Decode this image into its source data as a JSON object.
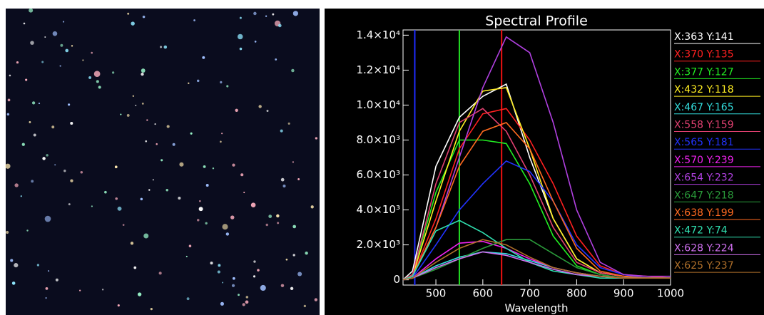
{
  "chart_data": {
    "type": "line",
    "title": "Spectral Profile",
    "x_label": "Wavelength",
    "x": [
      430,
      450,
      500,
      550,
      600,
      650,
      700,
      750,
      800,
      850,
      900,
      950,
      1000
    ],
    "xlim": [
      430,
      1000
    ],
    "xticks": [
      500,
      600,
      700,
      800,
      900,
      1000
    ],
    "ylim": [
      -300,
      14300
    ],
    "yticks": [
      0,
      {
        "value": 2000,
        "label": "2.0×10³"
      },
      {
        "value": 4000,
        "label": "4.0×10³"
      },
      {
        "value": 6000,
        "label": "6.0×10³"
      },
      {
        "value": 8000,
        "label": "8.0×10³"
      },
      {
        "value": 10000,
        "label": "1.0×10⁴"
      },
      {
        "value": 12000,
        "label": "1.2×10⁴"
      },
      {
        "value": 14000,
        "label": "1.4×10⁴"
      }
    ],
    "markers": [
      {
        "x": 455,
        "color": "#1e2cff"
      },
      {
        "x": 550,
        "color": "#22dd22"
      },
      {
        "x": 640,
        "color": "#ee1111"
      }
    ],
    "series": [
      {
        "name": "X:363 Y:141",
        "color": "#ffffff",
        "values": [
          0,
          500,
          6500,
          9300,
          10500,
          11200,
          7000,
          3500,
          1200,
          400,
          200,
          100,
          100
        ]
      },
      {
        "name": "X:370 Y:135",
        "color": "#ff2020",
        "values": [
          0,
          200,
          3500,
          7500,
          9500,
          9800,
          8000,
          5500,
          2500,
          800,
          300,
          200,
          100
        ]
      },
      {
        "name": "X:377 Y:127",
        "color": "#22ee22",
        "values": [
          0,
          300,
          5000,
          8000,
          8000,
          7800,
          5500,
          2500,
          800,
          300,
          100,
          100,
          100
        ]
      },
      {
        "name": "X:432 Y:118",
        "color": "#ffee22",
        "values": [
          0,
          200,
          4500,
          8500,
          10800,
          11000,
          7500,
          3500,
          1200,
          400,
          200,
          100,
          100
        ]
      },
      {
        "name": "X:467 Y:165",
        "color": "#33dddd",
        "values": [
          0,
          100,
          800,
          1300,
          1600,
          1500,
          1100,
          700,
          400,
          200,
          100,
          100,
          100
        ]
      },
      {
        "name": "X:558 Y:159",
        "color": "#e04070",
        "values": [
          0,
          300,
          5500,
          9000,
          9800,
          8500,
          6000,
          3000,
          1000,
          400,
          200,
          100,
          100
        ]
      },
      {
        "name": "X:565 Y:181",
        "color": "#2233ff",
        "values": [
          0,
          100,
          2000,
          4000,
          5500,
          6800,
          6200,
          4500,
          2000,
          700,
          300,
          100,
          100
        ]
      },
      {
        "name": "X:570 Y:239",
        "color": "#ee22ee",
        "values": [
          0,
          100,
          1200,
          2100,
          2200,
          1800,
          1200,
          700,
          400,
          200,
          100,
          100,
          100
        ]
      },
      {
        "name": "X:654 Y:232",
        "color": "#b040e0",
        "values": [
          0,
          200,
          3000,
          7000,
          11000,
          13900,
          13000,
          9000,
          4000,
          1000,
          300,
          200,
          200
        ]
      },
      {
        "name": "X:647 Y:218",
        "color": "#2a9a3a",
        "values": [
          0,
          100,
          600,
          1200,
          1800,
          2300,
          2300,
          1500,
          700,
          300,
          100,
          100,
          100
        ]
      },
      {
        "name": "X:638 Y:199",
        "color": "#ff6a20",
        "values": [
          0,
          200,
          3000,
          6500,
          8500,
          9000,
          7500,
          4500,
          1800,
          500,
          200,
          100,
          100
        ]
      },
      {
        "name": "X:472 Y:74",
        "color": "#30e0b0",
        "values": [
          0,
          200,
          2800,
          3400,
          2700,
          1800,
          1000,
          500,
          300,
          100,
          100,
          100,
          100
        ]
      },
      {
        "name": "X:628 Y:224",
        "color": "#d070f0",
        "values": [
          0,
          100,
          700,
          1200,
          1600,
          1400,
          1000,
          600,
          300,
          200,
          100,
          100,
          100
        ]
      },
      {
        "name": "X:625 Y:237",
        "color": "#b0702a",
        "values": [
          0,
          100,
          1000,
          1800,
          2300,
          2000,
          1300,
          700,
          400,
          200,
          100,
          100,
          100
        ]
      }
    ]
  }
}
